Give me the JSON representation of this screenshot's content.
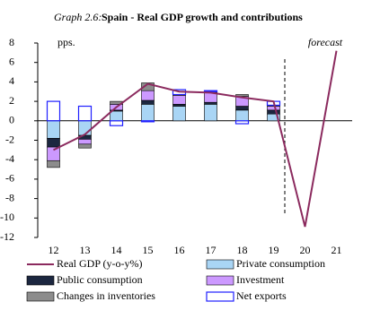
{
  "chart_data": {
    "type": "bar",
    "title_label": "Graph 2.6:",
    "title": "Spain - Real GDP growth and contributions",
    "y_label": "pps.",
    "annotation": "forecast",
    "categories": [
      "12",
      "13",
      "14",
      "15",
      "16",
      "17",
      "18",
      "19",
      "20",
      "21"
    ],
    "ylim": [
      -12,
      8
    ],
    "yticks": [
      -12,
      -10,
      -8,
      -6,
      -4,
      -2,
      0,
      2,
      4,
      6,
      8
    ],
    "series": [
      {
        "name": "Real GDP (y-o-y%)",
        "type": "line",
        "color": "#8b2a5e",
        "values": [
          -3.0,
          -1.4,
          1.4,
          3.8,
          3.0,
          2.9,
          2.4,
          2.0,
          -10.9,
          7.2
        ]
      },
      {
        "name": "Private consumption",
        "type": "bar",
        "color": "#a9d5f5",
        "values": [
          -1.8,
          -1.5,
          1.0,
          1.7,
          1.5,
          1.7,
          1.1,
          0.7,
          null,
          null
        ]
      },
      {
        "name": "Public consumption",
        "type": "bar",
        "color": "#1c2740",
        "values": [
          -0.9,
          -0.4,
          0.1,
          0.4,
          0.2,
          0.2,
          0.4,
          0.4,
          null,
          null
        ]
      },
      {
        "name": "Investment",
        "type": "bar",
        "color": "#cc99ff",
        "values": [
          -1.4,
          -0.5,
          0.6,
          1.0,
          0.9,
          1.0,
          1.0,
          0.4,
          null,
          null
        ]
      },
      {
        "name": "Changes in inventories",
        "type": "bar",
        "color": "#8c8c8c",
        "values": [
          -0.7,
          -0.4,
          0.3,
          0.8,
          0.1,
          0.1,
          0.2,
          0.1,
          null,
          null
        ]
      },
      {
        "name": "Net exports",
        "type": "bar",
        "color": "#1f1fff",
        "outline": true,
        "values": [
          2.0,
          1.5,
          -0.5,
          -0.1,
          0.5,
          0.1,
          -0.3,
          0.4,
          null,
          null
        ]
      }
    ]
  }
}
